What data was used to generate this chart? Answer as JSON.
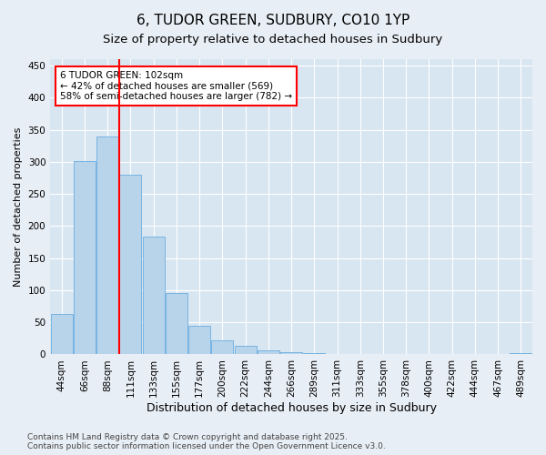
{
  "title": "6, TUDOR GREEN, SUDBURY, CO10 1YP",
  "subtitle": "Size of property relative to detached houses in Sudbury",
  "xlabel": "Distribution of detached houses by size in Sudbury",
  "ylabel": "Number of detached properties",
  "categories": [
    "44sqm",
    "66sqm",
    "88sqm",
    "111sqm",
    "133sqm",
    "155sqm",
    "177sqm",
    "200sqm",
    "222sqm",
    "244sqm",
    "266sqm",
    "289sqm",
    "311sqm",
    "333sqm",
    "355sqm",
    "378sqm",
    "400sqm",
    "422sqm",
    "444sqm",
    "467sqm",
    "489sqm"
  ],
  "values": [
    63,
    301,
    340,
    280,
    183,
    95,
    45,
    22,
    14,
    7,
    3,
    2,
    1,
    0,
    0,
    0,
    0,
    0,
    0,
    0,
    2
  ],
  "bar_color": "#b8d4ea",
  "bar_edge_color": "#6aade0",
  "vline_index": 2.5,
  "vline_color": "red",
  "annotation_text": "6 TUDOR GREEN: 102sqm\n← 42% of detached houses are smaller (569)\n58% of semi-detached houses are larger (782) →",
  "annotation_box_color": "white",
  "annotation_box_edge": "red",
  "ylim": [
    0,
    460
  ],
  "yticks": [
    0,
    50,
    100,
    150,
    200,
    250,
    300,
    350,
    400,
    450
  ],
  "bg_color": "#e8eef5",
  "plot_bg_color": "#d8e6f2",
  "footer": "Contains HM Land Registry data © Crown copyright and database right 2025.\nContains public sector information licensed under the Open Government Licence v3.0.",
  "title_fontsize": 11,
  "subtitle_fontsize": 9.5,
  "xlabel_fontsize": 9,
  "ylabel_fontsize": 8,
  "tick_fontsize": 7.5,
  "annotation_fontsize": 7.5,
  "footer_fontsize": 6.5
}
